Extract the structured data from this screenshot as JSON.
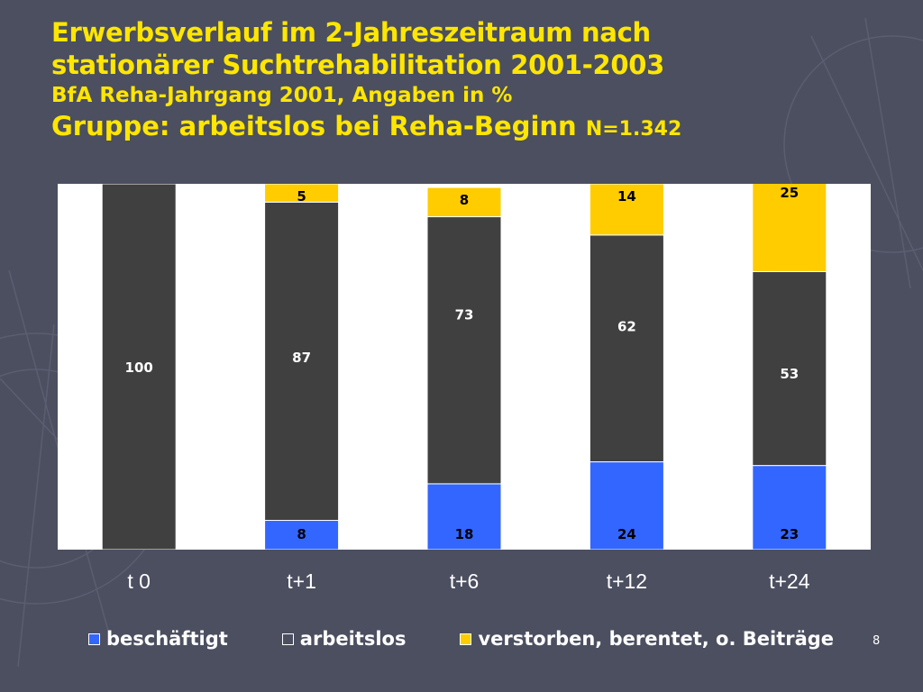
{
  "title": {
    "line1": "Erwerbsverlauf im 2-Jahreszeitraum nach",
    "line2": "stationärer Suchtrehabilitation 2001-2003",
    "subtitle": "BfA Reha-Jahrgang 2001, Angaben in %",
    "group": "Gruppe: arbeitslos bei Reha-Beginn",
    "n": "N=1.342"
  },
  "slide_number": "8",
  "colors": {
    "background": "#4b4f60",
    "plot_background": "#ffffff",
    "title": "#ffe600",
    "beschaeftigt": "#3366ff",
    "arbeitslos": "#404040",
    "verstorben": "#ffcc00"
  },
  "chart_data": {
    "type": "bar",
    "stacked": true,
    "categories": [
      "t 0",
      "t+1",
      "t+6",
      "t+12",
      "t+24"
    ],
    "series": [
      {
        "name": "beschäftigt",
        "values": [
          0,
          8,
          18,
          24,
          23
        ],
        "labels": [
          "",
          "8",
          "18",
          "24",
          "23"
        ]
      },
      {
        "name": "arbeitslos",
        "values": [
          100,
          87,
          73,
          62,
          53
        ],
        "labels": [
          "100",
          "87",
          "73",
          "62",
          "53"
        ]
      },
      {
        "name": "verstorben, berentet, o. Beiträge",
        "values": [
          0,
          5,
          8,
          14,
          25
        ],
        "labels": [
          "",
          "5",
          "8",
          "14",
          "25"
        ]
      }
    ],
    "ylim": [
      0,
      100
    ],
    "grid": false,
    "legend_position": "bottom"
  }
}
